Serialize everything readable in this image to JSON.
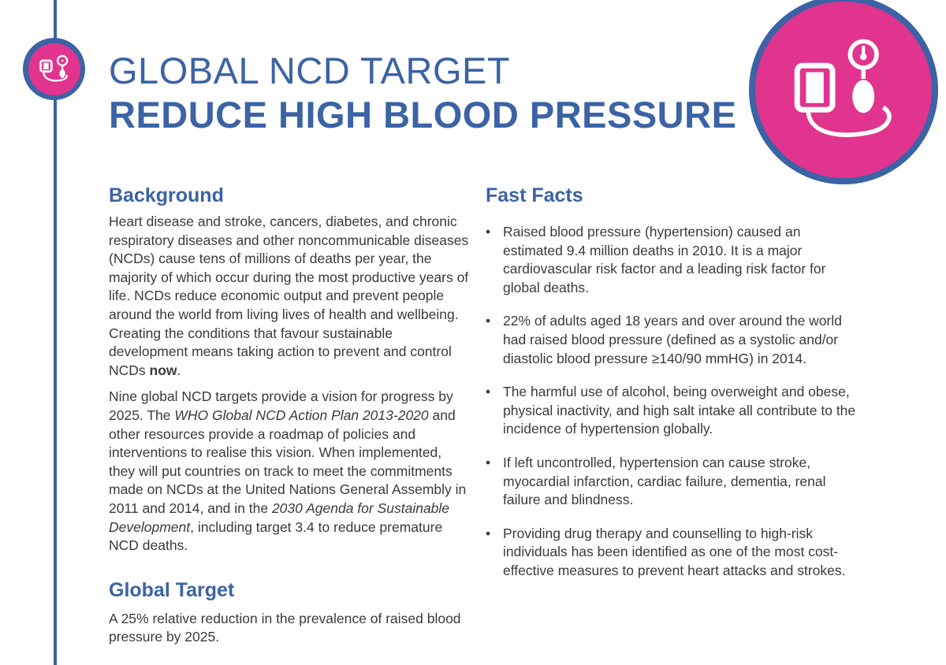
{
  "header": {
    "title_top": "GLOBAL NCD TARGET",
    "title_main": "REDUCE HIGH BLOOD PRESSURE"
  },
  "icons": {
    "small_badge": "blood-pressure-cuff-icon",
    "large_badge": "blood-pressure-cuff-icon"
  },
  "colors": {
    "brand_blue": "#3b63a5",
    "accent_pink": "#e1348e"
  },
  "background": {
    "heading": "Background",
    "paragraph1_a": "Heart disease and stroke, cancers, diabetes, and chronic respiratory diseases and other noncommunicable diseases (NCDs) cause tens of millions of deaths per year, the majority of which occur during the most productive years of life. NCDs reduce economic output and prevent people around the world from living lives of health and wellbeing. Creating the conditions that favour sustainable development means taking action to prevent and control NCDs ",
    "paragraph1_bold": "now",
    "paragraph1_end": ".",
    "paragraph2_a": "Nine global NCD targets provide a vision for progress by 2025.  The ",
    "paragraph2_italic1": "WHO Global NCD Action Plan 2013-2020",
    "paragraph2_b": " and other resources provide a roadmap of policies and interventions to realise this vision. When implemented, they will put countries on track to meet the commitments made on NCDs at the United Nations General Assembly in 2011 and 2014, and in the ",
    "paragraph2_italic2": "2030 Agenda for Sustainable Development",
    "paragraph2_c": ", including target 3.4 to reduce premature NCD deaths."
  },
  "global_target": {
    "heading": "Global Target",
    "text": "A 25% relative reduction in the prevalence of raised blood pressure by 2025."
  },
  "fast_facts": {
    "heading": "Fast Facts",
    "bullet": "•",
    "items": [
      "Raised blood pressure (hypertension) caused an estimated 9.4 million deaths in 2010. It is a major cardiovascular risk factor and a leading risk factor for global deaths.",
      "22% of adults aged 18 years and over around the world had raised blood pressure (defined as a systolic and/or diastolic blood pressure ≥140/90 mmHG) in 2014.",
      "The harmful use of alcohol, being overweight and obese, physical inactivity, and high salt intake all contribute to the incidence of hypertension globally.",
      "If left uncontrolled, hypertension can cause stroke, myocardial infarction, cardiac failure, dementia, renal failure and blindness.",
      "Providing drug therapy and counselling to high-risk individuals has been identified as one of the most cost-effective measures to prevent heart attacks and strokes."
    ]
  }
}
